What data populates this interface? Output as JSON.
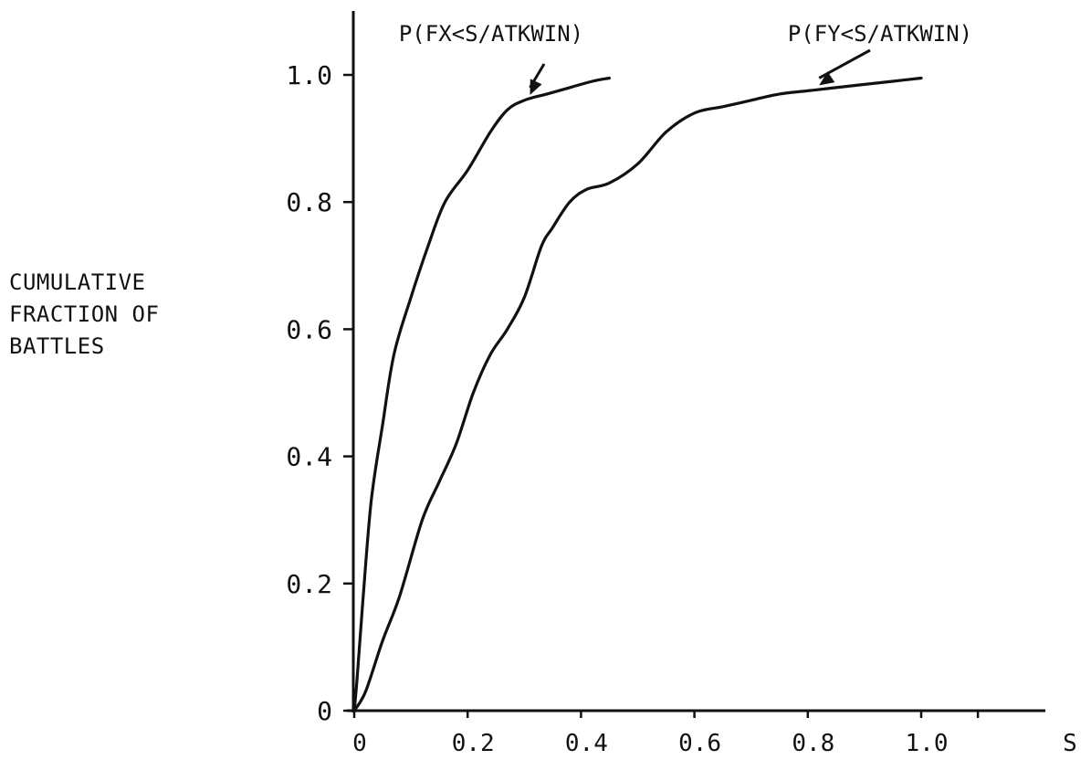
{
  "chart_data": {
    "type": "line",
    "title": "",
    "xlabel": "S",
    "ylabel_lines": [
      "CUMULATIVE",
      "FRACTION OF",
      "BATTLES"
    ],
    "xlim": [
      0,
      1.1
    ],
    "ylim": [
      0,
      1.1
    ],
    "x_ticks": [
      0,
      0.2,
      0.4,
      0.6,
      0.8,
      1.0
    ],
    "x_tick_labels": [
      "0",
      "0.2",
      "0.4",
      "0.6",
      "0.8",
      "1.0"
    ],
    "y_ticks": [
      0,
      0.2,
      0.4,
      0.6,
      0.8,
      1.0
    ],
    "y_tick_labels": [
      "0",
      "0.2",
      "0.4",
      "0.6",
      "0.8",
      "1.0"
    ],
    "grid": false,
    "series": [
      {
        "name": "P(FX<S/ATKWIN)",
        "x": [
          0,
          0.005,
          0.015,
          0.03,
          0.05,
          0.07,
          0.1,
          0.13,
          0.16,
          0.2,
          0.24,
          0.27,
          0.3,
          0.34,
          0.38,
          0.42,
          0.45
        ],
        "y": [
          0,
          0.05,
          0.17,
          0.33,
          0.45,
          0.56,
          0.65,
          0.73,
          0.8,
          0.85,
          0.91,
          0.945,
          0.96,
          0.97,
          0.98,
          0.99,
          0.995
        ]
      },
      {
        "name": "P(FY<S/ATKWIN)",
        "x": [
          0,
          0.02,
          0.05,
          0.08,
          0.12,
          0.15,
          0.18,
          0.21,
          0.24,
          0.27,
          0.3,
          0.33,
          0.35,
          0.38,
          0.41,
          0.45,
          0.5,
          0.55,
          0.6,
          0.65,
          0.7,
          0.75,
          0.8,
          0.85,
          0.9,
          0.95,
          1.0
        ],
        "y": [
          0,
          0.03,
          0.11,
          0.18,
          0.3,
          0.36,
          0.42,
          0.5,
          0.56,
          0.6,
          0.65,
          0.73,
          0.76,
          0.8,
          0.82,
          0.83,
          0.86,
          0.91,
          0.94,
          0.95,
          0.96,
          0.97,
          0.975,
          0.98,
          0.985,
          0.99,
          0.995
        ]
      }
    ],
    "annotations": [
      {
        "text": "P(FX<S/ATKWIN)",
        "target_series": "P(FX<S/ATKWIN)",
        "point": [
          0.31,
          0.96
        ]
      },
      {
        "text": "P(FY<S/ATKWIN)",
        "target_series": "P(FY<S/ATKWIN)",
        "point": [
          0.82,
          0.975
        ]
      }
    ]
  }
}
